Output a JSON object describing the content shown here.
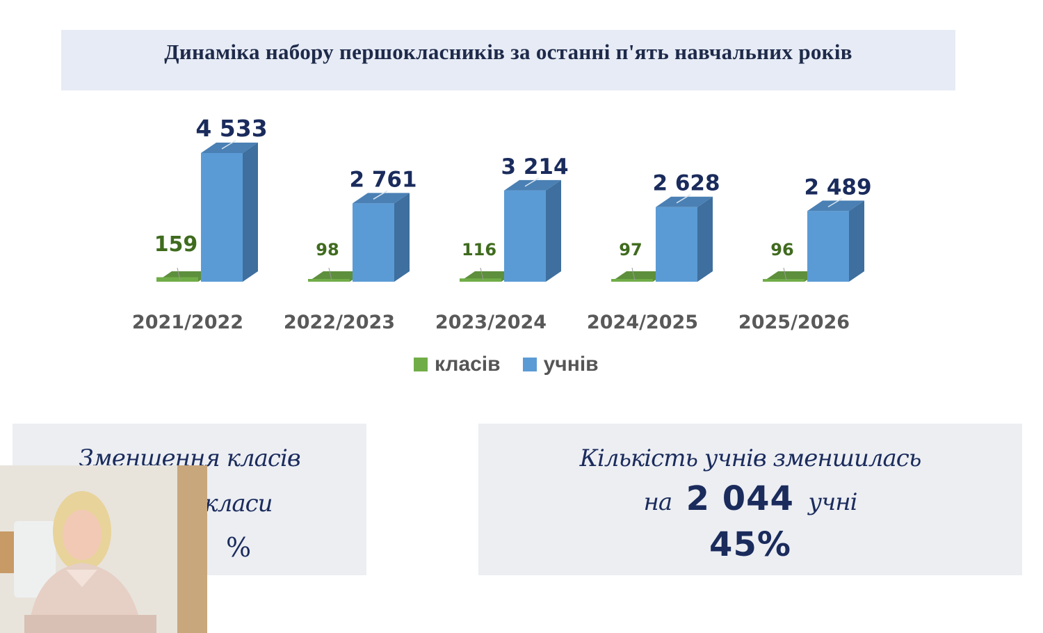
{
  "slide": {
    "title": "Динаміка набору першокласників за останні п'ять навчальних років"
  },
  "chart_data": {
    "type": "bar",
    "categories": [
      "2021/2022",
      "2022/2023",
      "2023/2024",
      "2024/2025",
      "2025/2026"
    ],
    "series": [
      {
        "name": "класів",
        "values": [
          159,
          98,
          116,
          97,
          96
        ],
        "labels": [
          "159",
          "98",
          "116",
          "97",
          "96"
        ],
        "color": "#70ad47"
      },
      {
        "name": "учнів",
        "values": [
          4533,
          2761,
          3214,
          2628,
          2489
        ],
        "labels": [
          "4 533",
          "2 761",
          "3 214",
          "2 628",
          "2 489"
        ],
        "color": "#5b9bd5"
      }
    ],
    "legend_position": "bottom",
    "style": "3d-column"
  },
  "info_left": {
    "line1": "Зменшення класів",
    "line2": "класи",
    "line3": "%"
  },
  "info_right": {
    "line1": "Кількість учнів зменшилась",
    "prefix": "на",
    "number": "2 044",
    "suffix": "учні",
    "percent": "45%"
  },
  "colors": {
    "text_dark": "#1a2b5c",
    "green_label": "#3f6b1e"
  }
}
